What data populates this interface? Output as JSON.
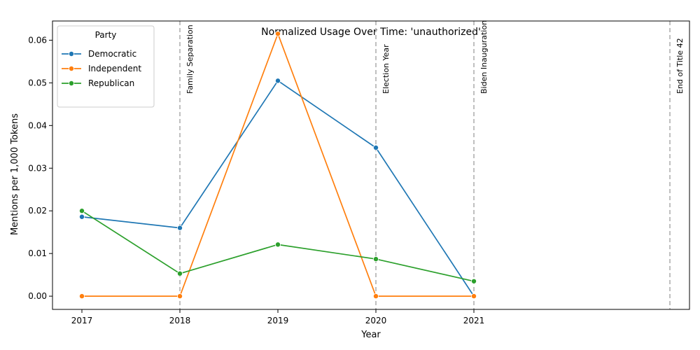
{
  "chart_data": {
    "type": "line",
    "title": "Normalized Usage Over Time: 'unauthorized'",
    "xlabel": "Year",
    "ylabel": "Mentions per 1,000 Tokens",
    "xlim": [
      2016.7,
      2023.2
    ],
    "ylim": [
      -0.0031,
      0.0645
    ],
    "x_ticks": [
      "2017",
      "2018",
      "2019",
      "2020",
      "2021"
    ],
    "y_ticks": [
      "0.00",
      "0.01",
      "0.02",
      "0.03",
      "0.04",
      "0.05",
      "0.06"
    ],
    "legend": {
      "title": "Party",
      "placement": "top-left"
    },
    "grid": false,
    "series": [
      {
        "name": "Democratic",
        "color": "#1f77b4",
        "x": [
          2017,
          2018,
          2019,
          2020,
          2021
        ],
        "values": [
          0.0186,
          0.016,
          0.0505,
          0.0348,
          0.0
        ]
      },
      {
        "name": "Independent",
        "color": "#ff7f0e",
        "x": [
          2017,
          2018,
          2019,
          2020,
          2021
        ],
        "values": [
          0.0,
          0.0,
          0.0615,
          0.0,
          0.0
        ]
      },
      {
        "name": "Republican",
        "color": "#2ca02c",
        "x": [
          2017,
          2018,
          2019,
          2020,
          2021
        ],
        "values": [
          0.02,
          0.0053,
          0.0121,
          0.0087,
          0.0035
        ]
      }
    ],
    "annotations": [
      {
        "x": 2018.0,
        "label": "Family Separation"
      },
      {
        "x": 2020.0,
        "label": "Election Year"
      },
      {
        "x": 2021.0,
        "label": "Biden Inauguration"
      },
      {
        "x": 2023.0,
        "label": "End of Title 42"
      }
    ]
  }
}
